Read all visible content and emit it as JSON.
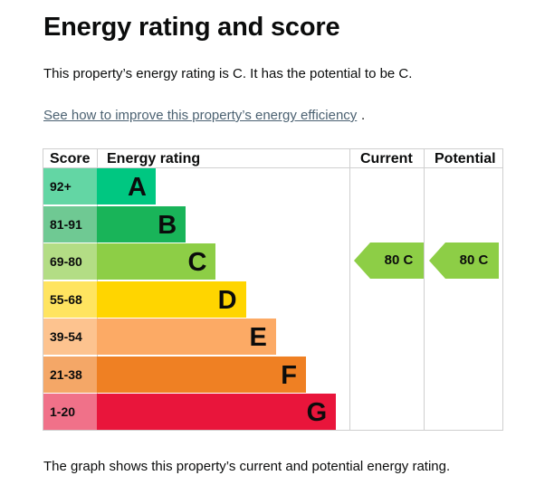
{
  "heading": "Energy rating and score",
  "intro": "This property’s energy rating is C. It has the potential to be C.",
  "link": "See how to improve this property’s energy efficiency",
  "link_suffix": ".",
  "table": {
    "col_score": "Score",
    "col_rating": "Energy rating",
    "col_current": "Current",
    "col_potential": "Potential"
  },
  "bands": [
    {
      "score": "92+",
      "letter": "A",
      "band_color": "#00c781",
      "score_color": "#63d6a4"
    },
    {
      "score": "81-91",
      "letter": "B",
      "band_color": "#19b459",
      "score_color": "#6fc993"
    },
    {
      "score": "69-80",
      "letter": "C",
      "band_color": "#8dce46",
      "score_color": "#b3dd85"
    },
    {
      "score": "55-68",
      "letter": "D",
      "band_color": "#ffd500",
      "score_color": "#ffe460"
    },
    {
      "score": "39-54",
      "letter": "E",
      "band_color": "#fcaa65",
      "score_color": "#fdc38f"
    },
    {
      "score": "21-38",
      "letter": "F",
      "band_color": "#ef8023",
      "score_color": "#f4a767"
    },
    {
      "score": "1-20",
      "letter": "G",
      "band_color": "#e9153b",
      "score_color": "#f07189"
    }
  ],
  "current": {
    "label": "80  C",
    "score": 80,
    "band": "C",
    "color": "#8dce46"
  },
  "potential": {
    "label": "80  C",
    "score": 80,
    "band": "C",
    "color": "#8dce46"
  },
  "footer": "The graph shows this property’s current and potential energy rating."
}
